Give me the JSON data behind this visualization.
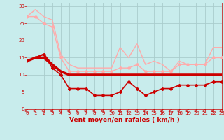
{
  "background_color": "#c8ecec",
  "grid_color": "#b0d8d8",
  "x_label": "Vent moyen/en rafales ( km/h )",
  "x_ticks": [
    0,
    1,
    2,
    3,
    4,
    5,
    6,
    7,
    8,
    9,
    10,
    11,
    12,
    13,
    14,
    15,
    16,
    17,
    18,
    19,
    20,
    21,
    22,
    23
  ],
  "ylim": [
    0,
    31
  ],
  "xlim": [
    0,
    23
  ],
  "yticks": [
    0,
    5,
    10,
    15,
    20,
    25,
    30
  ],
  "line1_upper": {
    "y": [
      27,
      29,
      27,
      26,
      16,
      13,
      12,
      12,
      12,
      12,
      12,
      18,
      15,
      19,
      13,
      14,
      13,
      11,
      14,
      13,
      13,
      13,
      18,
      18
    ],
    "color": "#ffaaaa",
    "lw": 1.0
  },
  "line1_lower": {
    "y": [
      27,
      27,
      25,
      24,
      15,
      11,
      11,
      11,
      11,
      11,
      11,
      12,
      12,
      13,
      11,
      11,
      11,
      11,
      13,
      13,
      13,
      13,
      15,
      15
    ],
    "color": "#ffaaaa",
    "lw": 1.0,
    "marker": "D",
    "ms": 2.0
  },
  "line2_upper": {
    "y": [
      14,
      15,
      16,
      13,
      11,
      10,
      10,
      10,
      10,
      10,
      10,
      10,
      10,
      10,
      10,
      10,
      10,
      10,
      10,
      10,
      10,
      10,
      10,
      10
    ],
    "color": "#cc0000",
    "lw": 1.5
  },
  "line2_mid": {
    "y": [
      14,
      15,
      15,
      13,
      11,
      10,
      10,
      10,
      10,
      10,
      10,
      10,
      10,
      10,
      10,
      10,
      10,
      10,
      10,
      10,
      10,
      10,
      10,
      10
    ],
    "color": "#cc0000",
    "lw": 2.5
  },
  "line2_lower": {
    "y": [
      14,
      15,
      16,
      12,
      10,
      6,
      6,
      6,
      4,
      4,
      4,
      5,
      8,
      6,
      4,
      5,
      6,
      6,
      7,
      7,
      7,
      7,
      8,
      8
    ],
    "color": "#cc0000",
    "lw": 1.2,
    "marker": "D",
    "ms": 2.0
  },
  "arrow_color": "#cc0000",
  "tick_color": "#cc0000",
  "label_color": "#cc0000",
  "label_fontsize": 6.5,
  "tick_fontsize": 5.0
}
